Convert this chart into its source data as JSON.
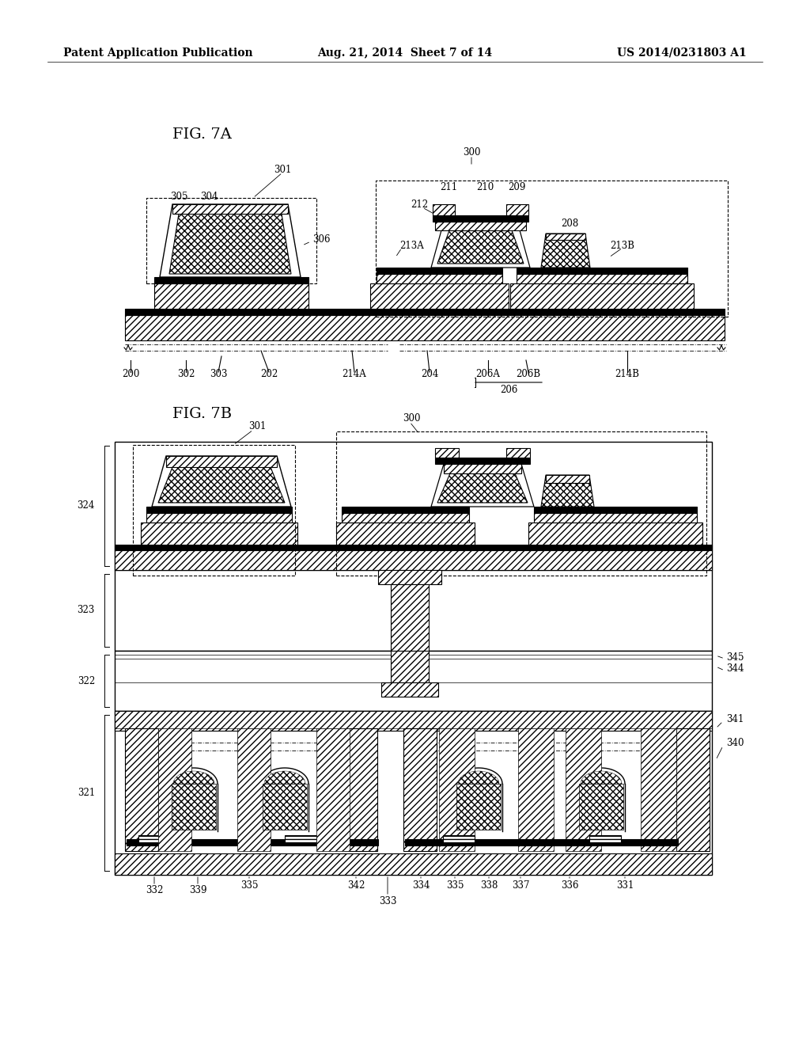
{
  "header_left": "Patent Application Publication",
  "header_center": "Aug. 21, 2014  Sheet 7 of 14",
  "header_right": "US 2014/0231803 A1",
  "fig7a_label": "FIG. 7A",
  "fig7b_label": "FIG. 7B",
  "background": "#ffffff",
  "line_color": "#000000",
  "font_size_header": 10,
  "font_size_figlabel": 13,
  "font_size_annotation": 8.5
}
